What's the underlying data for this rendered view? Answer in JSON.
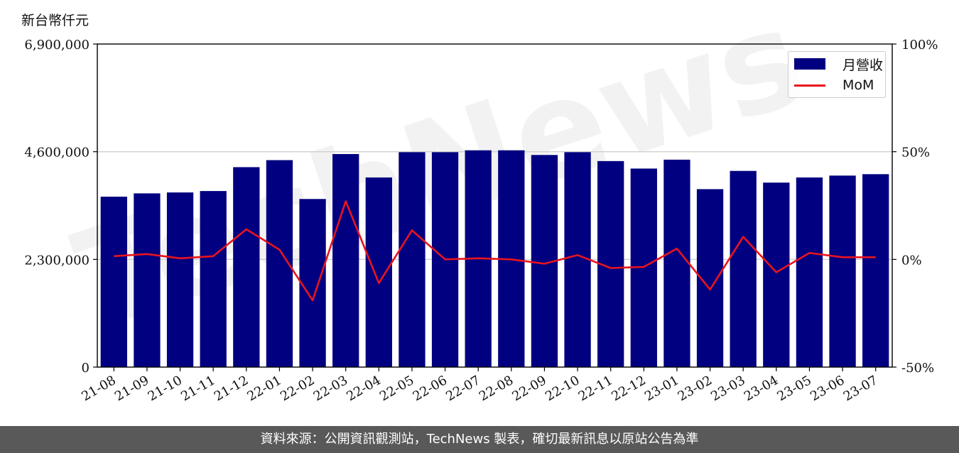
{
  "unit_label": "新台幣仟元",
  "footer_text": "資料來源：公開資訊觀測站，TechNews 製表，確切最新訊息以原站公告為準",
  "legend": {
    "bar_label": "月營收",
    "line_label": "MoM"
  },
  "colors": {
    "bar": "#000080",
    "line": "#e8141d",
    "footer": "#595959"
  },
  "chart_data": {
    "type": "bar",
    "categories": [
      "21-08",
      "21-09",
      "21-10",
      "21-11",
      "21-12",
      "22-01",
      "22-02",
      "22-03",
      "22-04",
      "22-05",
      "22-06",
      "22-07",
      "22-08",
      "22-09",
      "22-10",
      "22-11",
      "22-12",
      "23-01",
      "23-02",
      "23-03",
      "23-04",
      "23-05",
      "23-06",
      "23-07"
    ],
    "series": [
      {
        "name": "月營收",
        "axis": "left",
        "chart_type": "bar",
        "values": [
          3640000,
          3710000,
          3730000,
          3760000,
          4270000,
          4420000,
          3590000,
          4550000,
          4050000,
          4590000,
          4590000,
          4630000,
          4630000,
          4530000,
          4590000,
          4400000,
          4240000,
          4430000,
          3800000,
          4190000,
          3940000,
          4050000,
          4090000,
          4120000
        ]
      },
      {
        "name": "MoM",
        "axis": "right",
        "chart_type": "line",
        "values": [
          1.5,
          2.5,
          0.5,
          1.5,
          14,
          4.5,
          -19,
          27,
          -11,
          13.5,
          0,
          0.5,
          0,
          -2,
          2,
          -4,
          -3.5,
          5,
          -14,
          10.5,
          -6,
          3,
          1,
          1
        ]
      }
    ],
    "left_axis": {
      "ylim": [
        0,
        6900000
      ],
      "ticks": [
        "0",
        "2,300,000",
        "4,600,000",
        "6,900,000"
      ],
      "tick_values": [
        0,
        2300000,
        4600000,
        6900000
      ]
    },
    "right_axis": {
      "ylim": [
        -50,
        100
      ],
      "ticks": [
        "-50%",
        "0%",
        "50%",
        "100%"
      ],
      "tick_values": [
        -50,
        0,
        50,
        100
      ]
    },
    "grid": "horizontal",
    "legend_position": "top-right"
  }
}
